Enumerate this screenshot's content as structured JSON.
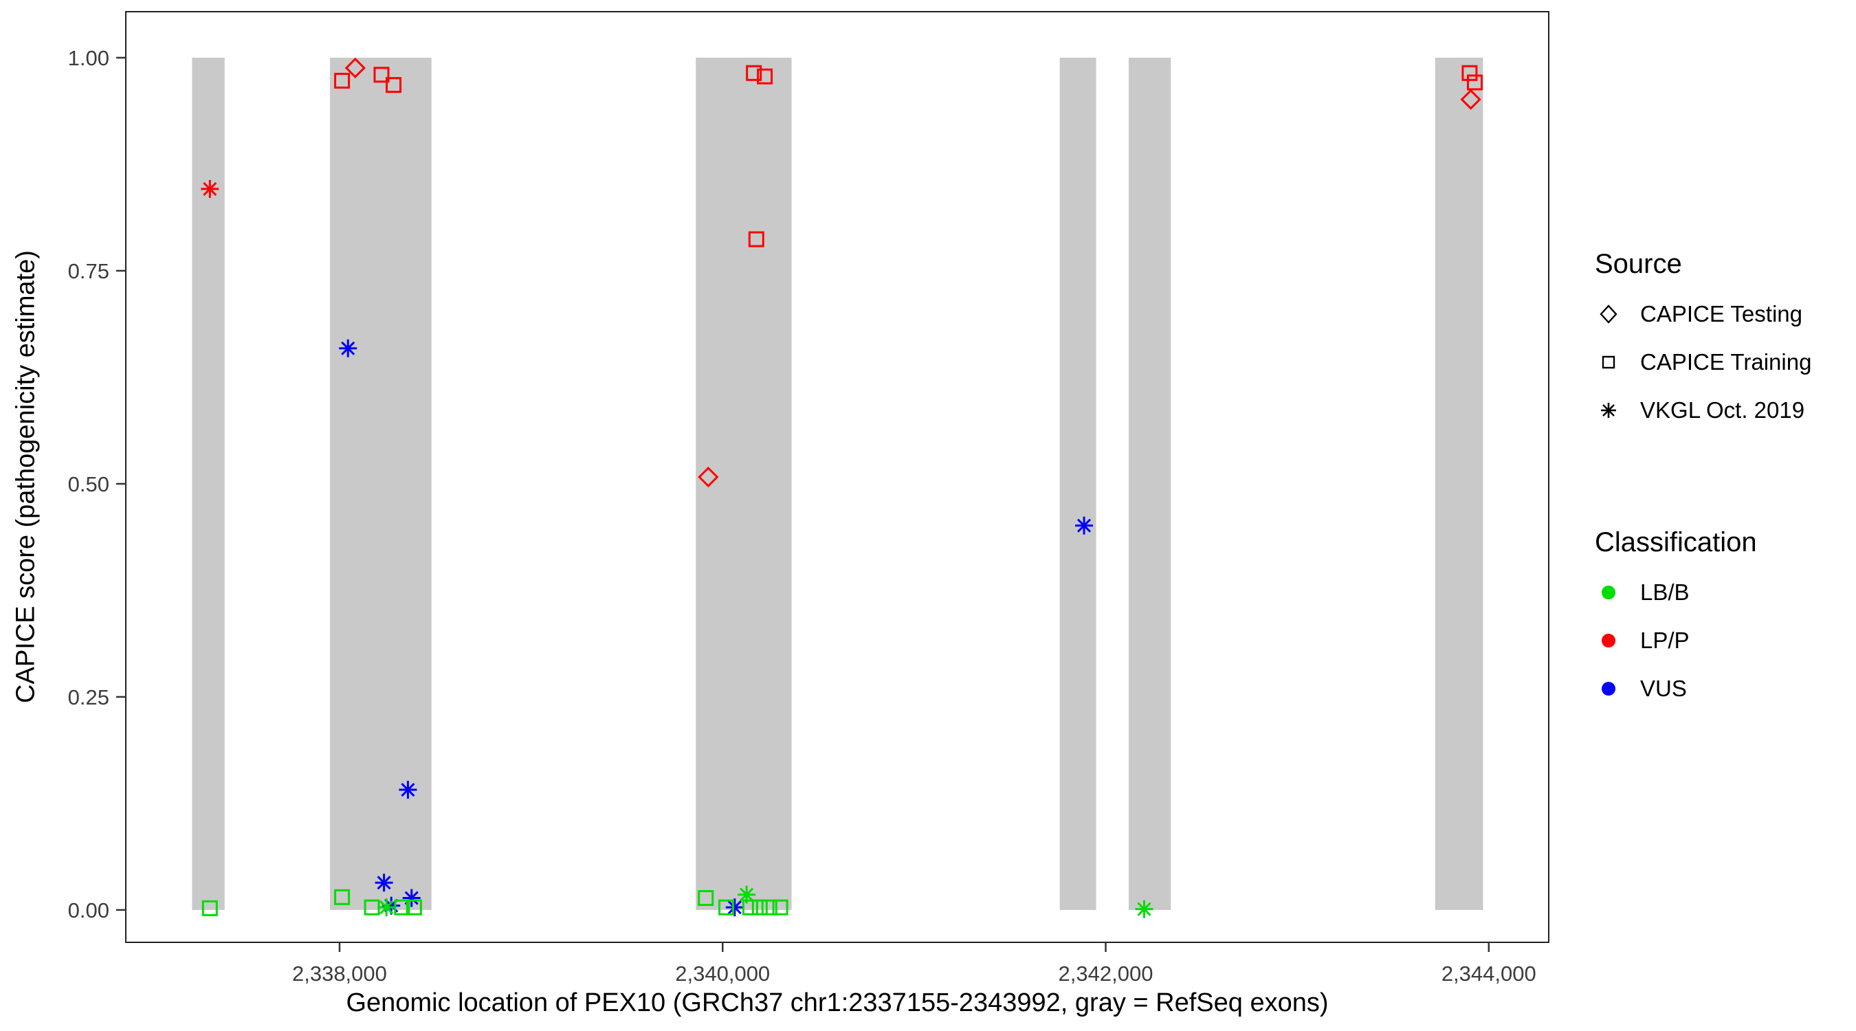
{
  "chart_data": {
    "type": "scatter",
    "title": "",
    "xlabel": "Genomic location of PEX10 (GRCh37 chr1:2337155-2343992, gray = RefSeq exons)",
    "ylabel": "CAPICE score (pathogenicity estimate)",
    "xlim": [
      2336884,
      2344313
    ],
    "ylim": [
      -0.038,
      1.054
    ],
    "grid": "off",
    "legend_position": "right",
    "x_ticks": [
      {
        "value": 2338000,
        "label": "2,338,000"
      },
      {
        "value": 2340000,
        "label": "2,340,000"
      },
      {
        "value": 2342000,
        "label": "2,342,000"
      },
      {
        "value": 2344000,
        "label": "2,344,000"
      }
    ],
    "y_ticks": [
      {
        "value": 0.0,
        "label": "0.00"
      },
      {
        "value": 0.25,
        "label": "0.25"
      },
      {
        "value": 0.5,
        "label": "0.50"
      },
      {
        "value": 0.75,
        "label": "0.75"
      },
      {
        "value": 1.0,
        "label": "1.00"
      }
    ],
    "exon_color": "#c9c9c9",
    "exons": [
      {
        "start": 2337230,
        "end": 2337400
      },
      {
        "start": 2337950,
        "end": 2338480
      },
      {
        "start": 2339860,
        "end": 2340360
      },
      {
        "start": 2341760,
        "end": 2341950
      },
      {
        "start": 2342120,
        "end": 2342340
      },
      {
        "start": 2343720,
        "end": 2343970
      }
    ],
    "classification_colors": {
      "LB/B": "#00dd00",
      "LP/P": "#ff0000",
      "VUS": "#0000ff"
    },
    "source_shapes": {
      "CAPICE Testing": "diamond",
      "CAPICE Training": "square",
      "VKGL Oct. 2019": "asterisk"
    },
    "points": [
      {
        "x": 2337323,
        "y": 0.846,
        "source": "VKGL Oct. 2019",
        "classification": "LP/P"
      },
      {
        "x": 2338013,
        "y": 0.973,
        "source": "CAPICE Training",
        "classification": "LP/P"
      },
      {
        "x": 2338082,
        "y": 0.988,
        "source": "CAPICE Testing",
        "classification": "LP/P"
      },
      {
        "x": 2338219,
        "y": 0.98,
        "source": "CAPICE Training",
        "classification": "LP/P"
      },
      {
        "x": 2338282,
        "y": 0.968,
        "source": "CAPICE Training",
        "classification": "LP/P"
      },
      {
        "x": 2339925,
        "y": 0.508,
        "source": "CAPICE Testing",
        "classification": "LP/P"
      },
      {
        "x": 2340163,
        "y": 0.982,
        "source": "CAPICE Training",
        "classification": "LP/P"
      },
      {
        "x": 2340220,
        "y": 0.978,
        "source": "CAPICE Training",
        "classification": "LP/P"
      },
      {
        "x": 2340176,
        "y": 0.787,
        "source": "CAPICE Training",
        "classification": "LP/P"
      },
      {
        "x": 2343900,
        "y": 0.982,
        "source": "CAPICE Training",
        "classification": "LP/P"
      },
      {
        "x": 2343927,
        "y": 0.971,
        "source": "CAPICE Training",
        "classification": "LP/P"
      },
      {
        "x": 2343906,
        "y": 0.951,
        "source": "CAPICE Testing",
        "classification": "LP/P"
      },
      {
        "x": 2338044,
        "y": 0.659,
        "source": "VKGL Oct. 2019",
        "classification": "VUS"
      },
      {
        "x": 2338357,
        "y": 0.141,
        "source": "VKGL Oct. 2019",
        "classification": "VUS"
      },
      {
        "x": 2338232,
        "y": 0.032,
        "source": "VKGL Oct. 2019",
        "classification": "VUS"
      },
      {
        "x": 2338270,
        "y": 0.005,
        "source": "VKGL Oct. 2019",
        "classification": "VUS"
      },
      {
        "x": 2338376,
        "y": 0.014,
        "source": "VKGL Oct. 2019",
        "classification": "VUS"
      },
      {
        "x": 2340063,
        "y": 0.003,
        "source": "VKGL Oct. 2019",
        "classification": "VUS"
      },
      {
        "x": 2341887,
        "y": 0.451,
        "source": "VKGL Oct. 2019",
        "classification": "VUS"
      },
      {
        "x": 2337323,
        "y": 0.002,
        "source": "CAPICE Training",
        "classification": "LB/B"
      },
      {
        "x": 2338013,
        "y": 0.015,
        "source": "CAPICE Training",
        "classification": "LB/B"
      },
      {
        "x": 2338169,
        "y": 0.003,
        "source": "CAPICE Training",
        "classification": "LB/B"
      },
      {
        "x": 2338245,
        "y": 0.003,
        "source": "VKGL Oct. 2019",
        "classification": "LB/B"
      },
      {
        "x": 2338326,
        "y": 0.003,
        "source": "CAPICE Training",
        "classification": "LB/B"
      },
      {
        "x": 2338389,
        "y": 0.003,
        "source": "CAPICE Training",
        "classification": "LB/B"
      },
      {
        "x": 2339912,
        "y": 0.014,
        "source": "CAPICE Training",
        "classification": "LB/B"
      },
      {
        "x": 2340019,
        "y": 0.003,
        "source": "CAPICE Training",
        "classification": "LB/B"
      },
      {
        "x": 2340125,
        "y": 0.018,
        "source": "VKGL Oct. 2019",
        "classification": "LB/B"
      },
      {
        "x": 2340144,
        "y": 0.003,
        "source": "CAPICE Training",
        "classification": "LB/B"
      },
      {
        "x": 2340194,
        "y": 0.003,
        "source": "CAPICE Training",
        "classification": "LB/B"
      },
      {
        "x": 2340244,
        "y": 0.003,
        "source": "CAPICE Training",
        "classification": "LB/B"
      },
      {
        "x": 2340301,
        "y": 0.003,
        "source": "CAPICE Training",
        "classification": "LB/B"
      },
      {
        "x": 2342201,
        "y": 0.001,
        "source": "VKGL Oct. 2019",
        "classification": "LB/B"
      }
    ]
  },
  "legend": {
    "source": {
      "title": "Source",
      "items": [
        {
          "label": "CAPICE Testing",
          "shape": "diamond"
        },
        {
          "label": "CAPICE Training",
          "shape": "square"
        },
        {
          "label": "VKGL Oct. 2019",
          "shape": "asterisk"
        }
      ]
    },
    "classification": {
      "title": "Classification",
      "items": [
        {
          "label": "LB/B",
          "color": "#00dd00"
        },
        {
          "label": "LP/P",
          "color": "#ff0000"
        },
        {
          "label": "VUS",
          "color": "#0000ff"
        }
      ]
    }
  }
}
